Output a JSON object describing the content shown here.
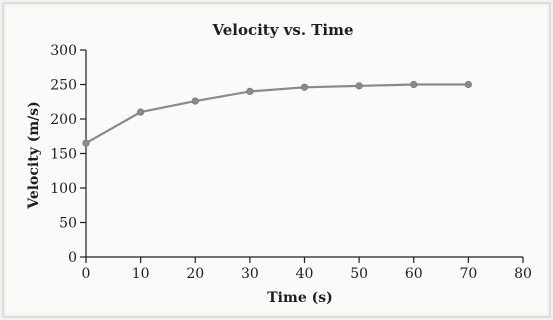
{
  "colors": {
    "background": "#f3f1ee",
    "plot_area": "#fbfaf8",
    "border": "#c9c6c2",
    "series": "#8a8a8c",
    "axis": "#1e1e1e"
  },
  "chart_data": {
    "type": "line",
    "title": "Velocity vs. Time",
    "xlabel": "Time (s)",
    "ylabel": "Velocity (m/s)",
    "xlim": [
      0,
      80
    ],
    "ylim": [
      0,
      300
    ],
    "xticks": [
      0,
      10,
      20,
      30,
      40,
      50,
      60,
      70,
      80
    ],
    "yticks": [
      0,
      50,
      100,
      150,
      200,
      250,
      300
    ],
    "grid": false,
    "series": [
      {
        "x": [
          0,
          10,
          20,
          30,
          40,
          50,
          60,
          70
        ],
        "y": [
          165,
          210,
          226,
          240,
          246,
          248,
          250,
          250
        ]
      }
    ]
  }
}
